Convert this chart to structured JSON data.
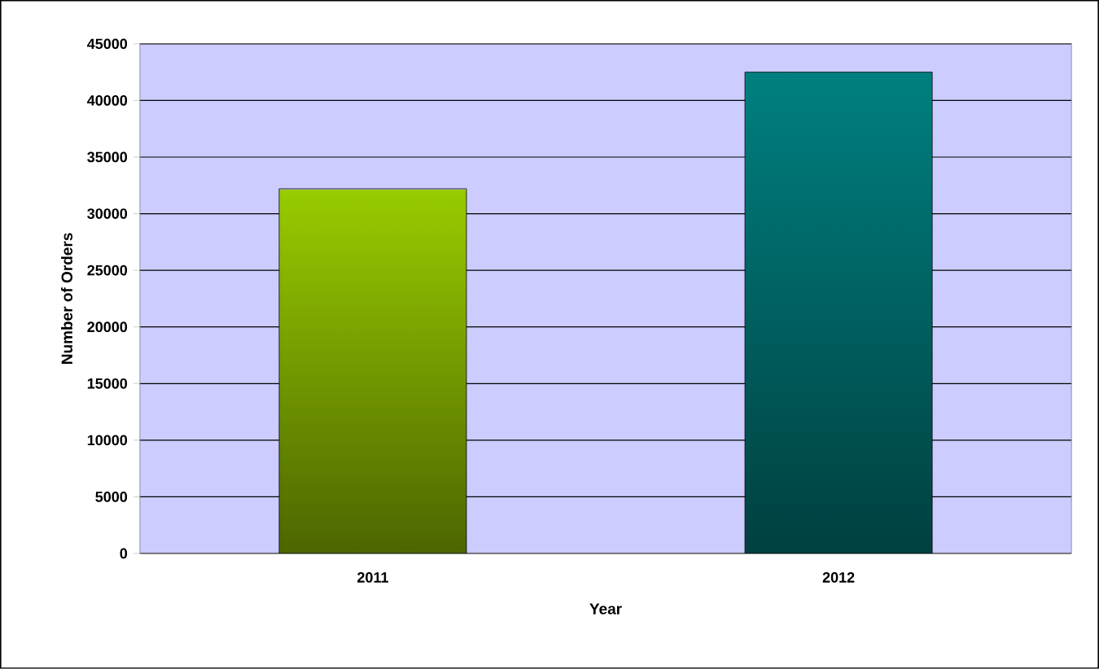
{
  "chart_data": {
    "type": "bar",
    "xlabel": "Year",
    "ylabel": "Number of Orders",
    "categories": [
      "2011",
      "2012"
    ],
    "values": [
      32200,
      42500
    ],
    "colors": [
      "#99cc00",
      "#008080"
    ],
    "ylim": [
      0,
      45000
    ],
    "yticks": [
      0,
      5000,
      10000,
      15000,
      20000,
      25000,
      30000,
      35000,
      40000,
      45000
    ],
    "grid": "y"
  }
}
